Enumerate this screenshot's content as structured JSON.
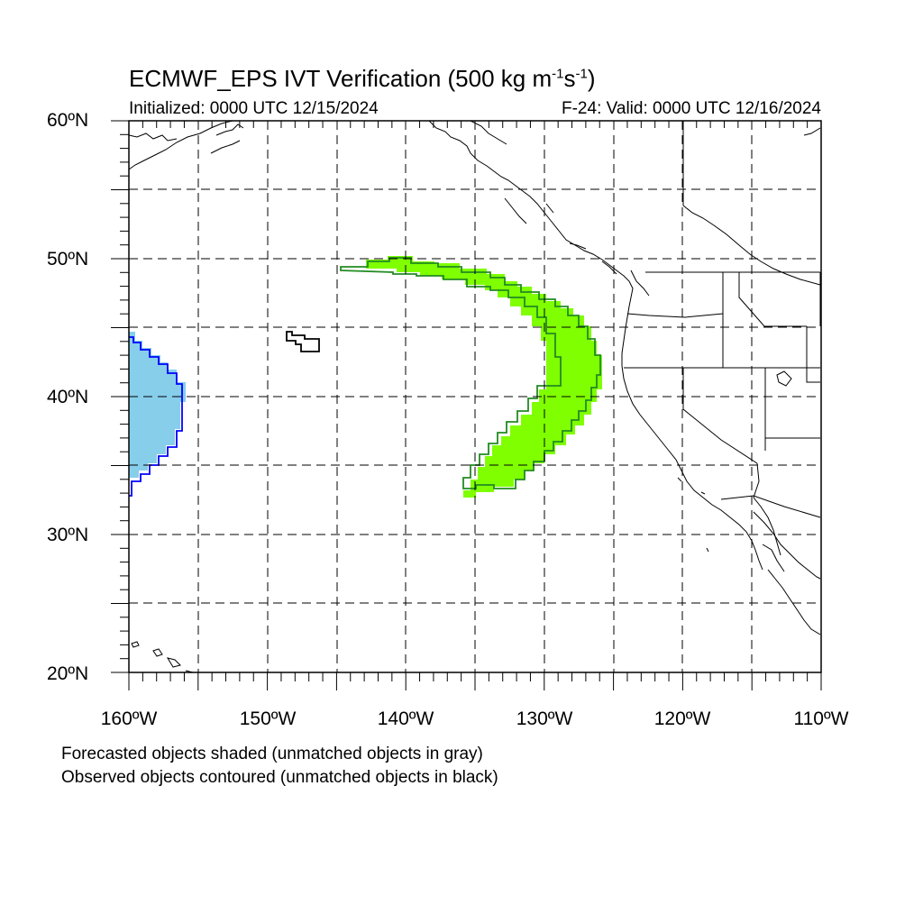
{
  "title": {
    "main": "ECMWF_EPS IVT Verification (500 kg m",
    "exp1": "-1",
    "mid": "s",
    "exp2": "-1",
    "end": ")"
  },
  "initialized": "Initialized: 0000 UTC 12/15/2024",
  "valid": "F-24: Valid: 0000 UTC 12/16/2024",
  "lat_labels": [
    "60ºN",
    "50ºN",
    "40ºN",
    "30ºN",
    "20ºN"
  ],
  "lon_labels": [
    "160ºW",
    "150ºW",
    "140ºW",
    "130ºW",
    "120ºW",
    "110ºW"
  ],
  "notes": [
    "Forecasted objects shaded (unmatched objects in gray)",
    "Observed objects contoured (unmatched objects in black)"
  ],
  "colors": {
    "forecast_matched_1": "#87ceeb",
    "forecast_matched_2": "#7fff00",
    "observed_1": "#0000ff",
    "observed_2": "#228b22",
    "observed_unmatched": "#000000"
  }
}
